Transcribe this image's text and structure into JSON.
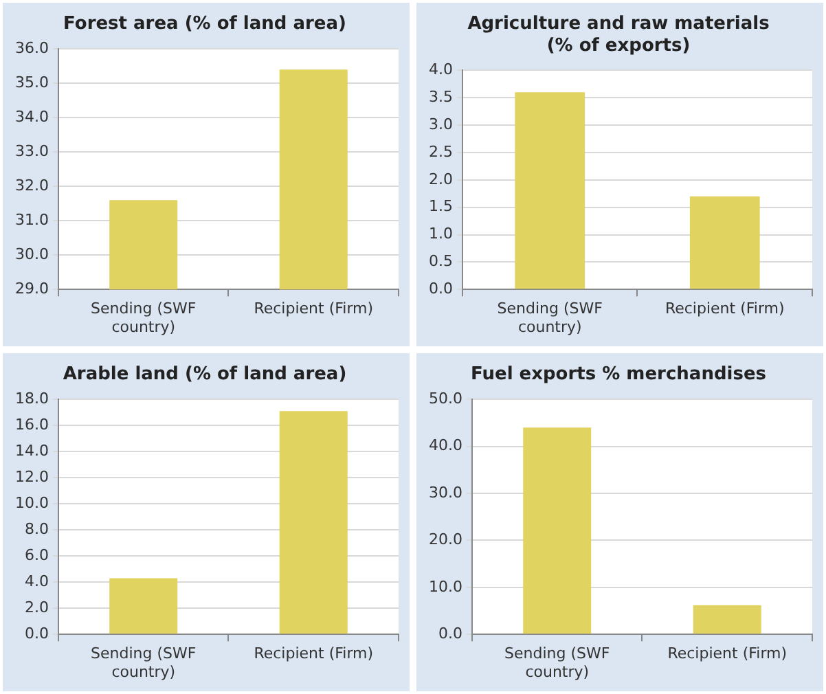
{
  "chart_data": [
    {
      "type": "bar",
      "title": "Forest area (% of land area)",
      "categories": [
        "Sending (SWF country)",
        "Recipient (Firm)"
      ],
      "values": [
        31.6,
        35.4
      ],
      "color": "#e0d35f",
      "ylim": [
        29,
        36
      ],
      "yticks": [
        {
          "value": 29,
          "label": "29.0"
        },
        {
          "value": 30,
          "label": "30.0"
        },
        {
          "value": 31,
          "label": "31.0"
        },
        {
          "value": 32,
          "label": "32.0"
        },
        {
          "value": 33,
          "label": "33.0"
        },
        {
          "value": 34,
          "label": "34.0"
        },
        {
          "value": 35,
          "label": "35.0"
        },
        {
          "value": 36,
          "label": "36.0"
        }
      ],
      "grid": "y"
    },
    {
      "type": "bar",
      "title": "Agriculture and raw materials (% of exports)",
      "categories": [
        "Sending (SWF country)",
        "Recipient (Firm)"
      ],
      "values": [
        3.6,
        1.7
      ],
      "color": "#e0d35f",
      "ylim": [
        0,
        4
      ],
      "yticks": [
        {
          "value": 0,
          "label": "0.0"
        },
        {
          "value": 0.5,
          "label": "0.5"
        },
        {
          "value": 1,
          "label": "1.0"
        },
        {
          "value": 1.5,
          "label": "1.5"
        },
        {
          "value": 2,
          "label": "2.0"
        },
        {
          "value": 2.5,
          "label": "2.5"
        },
        {
          "value": 3,
          "label": "3.0"
        },
        {
          "value": 3.5,
          "label": "3.5"
        },
        {
          "value": 4,
          "label": "4.0"
        }
      ],
      "grid": "y"
    },
    {
      "type": "bar",
      "title": "Arable land (% of land area)",
      "categories": [
        "Sending (SWF country)",
        "Recipient (Firm)"
      ],
      "values": [
        4.3,
        17.1
      ],
      "color": "#e0d35f",
      "ylim": [
        0,
        18
      ],
      "yticks": [
        {
          "value": 0,
          "label": "0.0"
        },
        {
          "value": 2,
          "label": "2.0"
        },
        {
          "value": 4,
          "label": "4.0"
        },
        {
          "value": 6,
          "label": "6.0"
        },
        {
          "value": 8,
          "label": "8.0"
        },
        {
          "value": 10,
          "label": "10.0"
        },
        {
          "value": 12,
          "label": "12.0"
        },
        {
          "value": 14,
          "label": "14.0"
        },
        {
          "value": 16,
          "label": "16.0"
        },
        {
          "value": 18,
          "label": "18.0"
        }
      ],
      "grid": "y"
    },
    {
      "type": "bar",
      "title": "Fuel exports % merchandises",
      "categories": [
        "Sending (SWF country)",
        "Recipient (Firm)"
      ],
      "values": [
        44.0,
        6.2
      ],
      "color": "#e0d35f",
      "ylim": [
        0,
        50
      ],
      "yticks": [
        {
          "value": 0,
          "label": "0.0"
        },
        {
          "value": 10,
          "label": "10.0"
        },
        {
          "value": 20,
          "label": "20.0"
        },
        {
          "value": 30,
          "label": "30.0"
        },
        {
          "value": 40,
          "label": "40.0"
        },
        {
          "value": 50,
          "label": "50.0"
        }
      ],
      "grid": "y"
    }
  ]
}
